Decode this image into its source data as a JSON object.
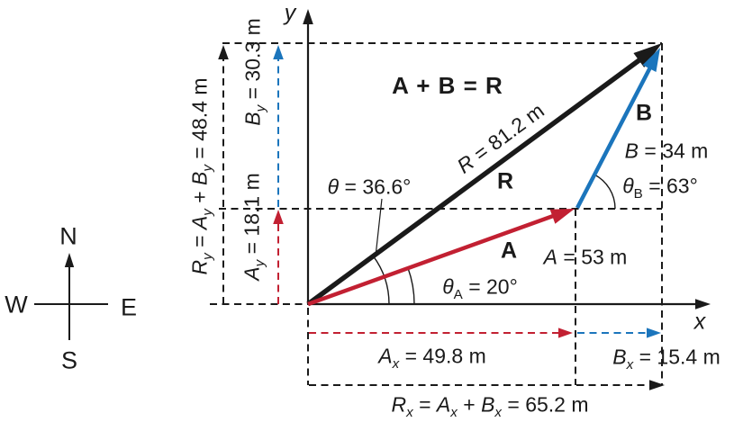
{
  "colors": {
    "ink": "#1a1a1a",
    "vector_a_red": "#c22032",
    "vector_b_blue": "#1b75bc"
  },
  "axes": {
    "x_label": "x",
    "y_label": "y"
  },
  "compass": {
    "north": "N",
    "south": "S",
    "east": "E",
    "west": "W"
  },
  "equation": "A + B = R",
  "vectors": {
    "a": {
      "name": "A",
      "magnitude": "*A* = 53 m",
      "angle": "*θ*_A_ = 20°"
    },
    "b": {
      "name": "B",
      "magnitude": "*B* = 34 m",
      "angle": "*θ*_B_ = 63°"
    },
    "r": {
      "name": "R",
      "magnitude": "*R* = 81.2 m",
      "angle": "*θ* = 36.6°"
    }
  },
  "components": {
    "ax": "*A*_*x*_ = 49.8 m",
    "bx": "*B*_*x*_ = 15.4 m",
    "rx": "*R*_*x*_ = *A*_*x*_ + *B*_*x*_ = 65.2 m",
    "ay": "*A*_*y*_ = 18.1 m",
    "by": "*B*_*y*_ = 30.3 m",
    "ry": "*R*_*y*_ = *A*_*y*_ + *B*_*y*_ = 48.4 m"
  }
}
